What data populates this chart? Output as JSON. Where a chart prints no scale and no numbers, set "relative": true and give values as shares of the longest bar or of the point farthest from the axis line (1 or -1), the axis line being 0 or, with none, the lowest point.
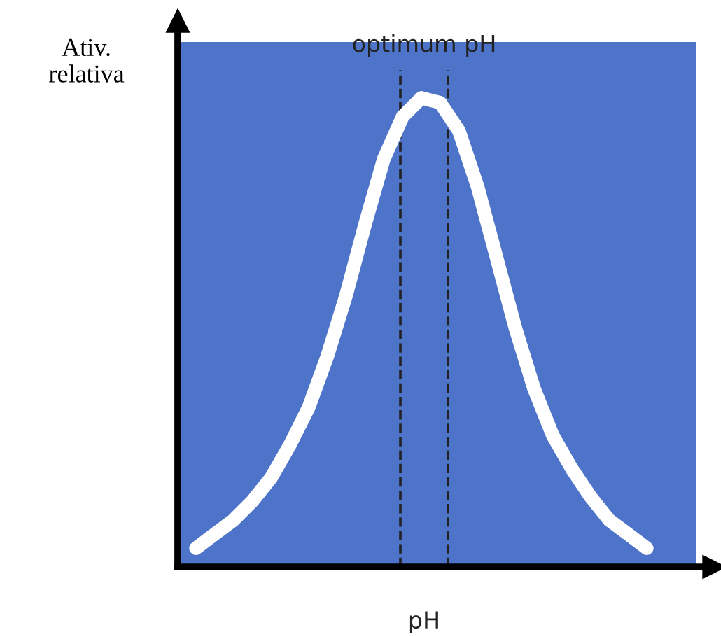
{
  "chart_data": {
    "type": "line",
    "relative": true,
    "ylabel": "Ativ.\nrelativa",
    "xlabel": "pH",
    "categories": [
      null,
      null,
      null,
      null,
      null,
      null,
      null,
      null,
      null,
      null,
      null,
      null,
      null,
      null,
      null,
      null,
      null,
      null,
      null,
      null,
      null,
      null,
      null,
      null,
      null
    ],
    "series": [
      {
        "color": "#ffffff",
        "values": [
          0.04,
          0.07,
          0.1,
          0.14,
          0.19,
          0.26,
          0.34,
          0.45,
          0.58,
          0.73,
          0.87,
          0.96,
          1,
          0.99,
          0.93,
          0.81,
          0.66,
          0.51,
          0.38,
          0.28,
          0.21,
          0.15,
          0.1,
          0.07,
          0.04
        ]
      }
    ],
    "annotations": [
      "optimum pH"
    ],
    "legend": false,
    "marker": "none",
    "line_style": "solid"
  }
}
